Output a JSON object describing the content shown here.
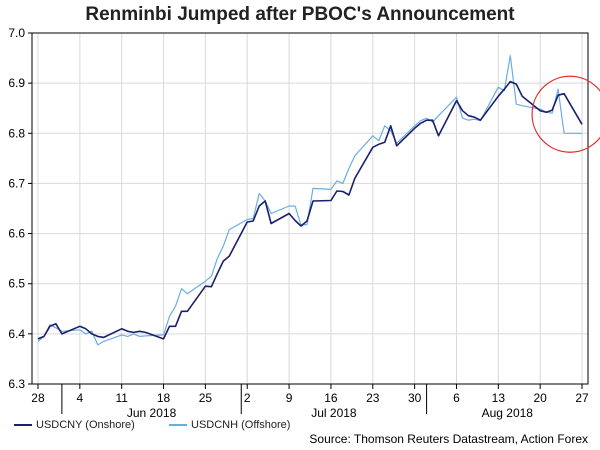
{
  "chart_data": {
    "type": "line",
    "title": "Renminbi Jumped after PBOC's Announcement",
    "xlabel": "",
    "ylabel": "",
    "ylim": [
      6.3,
      7.0
    ],
    "yticks": [
      "6.3",
      "6.4",
      "6.5",
      "6.6",
      "6.7",
      "6.8",
      "6.9",
      "7.0"
    ],
    "xticks": [
      "28",
      "4",
      "11",
      "18",
      "25",
      "2",
      "9",
      "16",
      "23",
      "30",
      "6",
      "13",
      "20",
      "27"
    ],
    "month_labels": [
      "Jun 2018",
      "Jul 2018",
      "Aug 2018"
    ],
    "x": [
      "2018-05-28",
      "2018-05-29",
      "2018-05-30",
      "2018-05-31",
      "2018-06-01",
      "2018-06-04",
      "2018-06-05",
      "2018-06-06",
      "2018-06-07",
      "2018-06-08",
      "2018-06-11",
      "2018-06-12",
      "2018-06-13",
      "2018-06-14",
      "2018-06-15",
      "2018-06-18",
      "2018-06-19",
      "2018-06-20",
      "2018-06-21",
      "2018-06-22",
      "2018-06-25",
      "2018-06-26",
      "2018-06-27",
      "2018-06-28",
      "2018-06-29",
      "2018-07-02",
      "2018-07-03",
      "2018-07-04",
      "2018-07-05",
      "2018-07-06",
      "2018-07-09",
      "2018-07-10",
      "2018-07-11",
      "2018-07-12",
      "2018-07-13",
      "2018-07-16",
      "2018-07-17",
      "2018-07-18",
      "2018-07-19",
      "2018-07-20",
      "2018-07-23",
      "2018-07-24",
      "2018-07-25",
      "2018-07-26",
      "2018-07-27",
      "2018-07-30",
      "2018-07-31",
      "2018-08-01",
      "2018-08-02",
      "2018-08-03",
      "2018-08-06",
      "2018-08-07",
      "2018-08-08",
      "2018-08-09",
      "2018-08-10",
      "2018-08-13",
      "2018-08-14",
      "2018-08-15",
      "2018-08-16",
      "2018-08-17",
      "2018-08-20",
      "2018-08-21",
      "2018-08-22",
      "2018-08-23",
      "2018-08-24",
      "2018-08-27"
    ],
    "series": [
      {
        "name": "USDCNY (Onshore)",
        "color": "#1a1f6e",
        "values": [
          6.39,
          6.395,
          6.415,
          6.42,
          6.4,
          6.415,
          6.41,
          6.4,
          6.395,
          6.393,
          6.41,
          6.405,
          6.403,
          6.405,
          6.403,
          6.39,
          6.415,
          6.415,
          6.445,
          6.445,
          6.495,
          6.494,
          6.52,
          6.545,
          6.555,
          6.623,
          6.625,
          6.655,
          6.665,
          6.62,
          6.64,
          6.626,
          6.615,
          6.625,
          6.665,
          6.666,
          6.685,
          6.684,
          6.677,
          6.71,
          6.772,
          6.778,
          6.782,
          6.815,
          6.775,
          6.81,
          6.82,
          6.826,
          6.826,
          6.795,
          6.865,
          6.845,
          6.835,
          6.832,
          6.826,
          6.874,
          6.888,
          6.903,
          6.898,
          6.874,
          6.845,
          6.842,
          6.846,
          6.876,
          6.879,
          6.818
        ]
      },
      {
        "name": "USDCNH (Offshore)",
        "color": "#6aaee0",
        "values": [
          6.385,
          6.395,
          6.418,
          6.412,
          6.405,
          6.408,
          6.4,
          6.405,
          6.378,
          6.385,
          6.398,
          6.395,
          6.4,
          6.395,
          6.396,
          6.398,
          6.435,
          6.455,
          6.49,
          6.48,
          6.505,
          6.515,
          6.55,
          6.575,
          6.608,
          6.628,
          6.63,
          6.68,
          6.665,
          6.64,
          6.655,
          6.655,
          6.617,
          6.618,
          6.69,
          6.688,
          6.705,
          6.7,
          6.73,
          6.755,
          6.795,
          6.785,
          6.815,
          6.805,
          6.78,
          6.815,
          6.825,
          6.83,
          6.822,
          6.835,
          6.872,
          6.83,
          6.826,
          6.828,
          6.825,
          6.892,
          6.885,
          6.955,
          6.858,
          6.855,
          6.848,
          6.842,
          6.84,
          6.888,
          6.8,
          6.8
        ]
      }
    ],
    "source": "Source: Thomson Reuters Datastream, Action Forex",
    "annotation": "red circle around the late-August drop",
    "grid": true,
    "legend_position": "bottom-left"
  }
}
